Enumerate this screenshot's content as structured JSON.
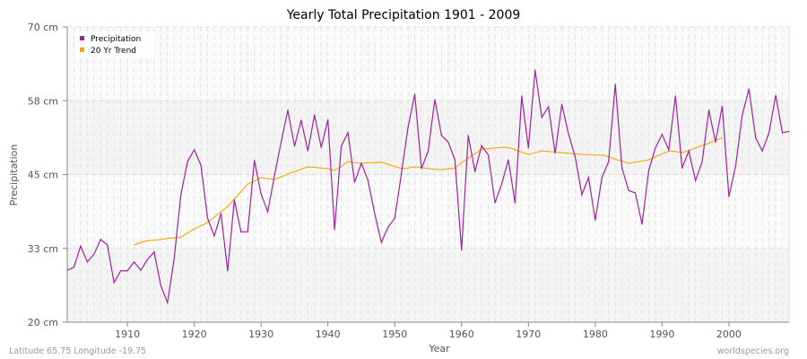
{
  "chart_data": {
    "type": "line",
    "title": "Yearly Total Precipitation 1901 - 2009",
    "xlabel": "Year",
    "ylabel": "Precipitation",
    "xlim": [
      1901,
      2009
    ],
    "ylim": [
      20,
      70
    ],
    "yticks": [
      20,
      32.5,
      45,
      57.5,
      70
    ],
    "ytick_labels": [
      "20 cm",
      "33 cm",
      "45 cm",
      "58 cm",
      "70 cm"
    ],
    "xticks": [
      1910,
      1920,
      1930,
      1940,
      1950,
      1960,
      1970,
      1980,
      1990,
      2000
    ],
    "xtick_labels": [
      "1910",
      "1920",
      "1930",
      "1940",
      "1950",
      "1960",
      "1970",
      "1980",
      "1990",
      "2000"
    ],
    "grid": true,
    "legend_position": "top-left",
    "series": [
      {
        "name": "Precipitation",
        "color": "#a020a0",
        "start_year": 1901,
        "values": [
          28.8,
          29.3,
          32.9,
          30.2,
          31.5,
          34.0,
          33.1,
          26.7,
          28.7,
          28.7,
          30.2,
          28.8,
          30.6,
          31.9,
          26.2,
          23.3,
          30.8,
          41.6,
          47.2,
          49.2,
          46.6,
          37.6,
          34.6,
          38.4,
          28.7,
          40.7,
          35.3,
          35.3,
          47.4,
          41.7,
          38.7,
          44.8,
          50.5,
          55.9,
          49.8,
          54.2,
          49.0,
          55.1,
          49.6,
          54.3,
          35.7,
          49.8,
          52.1,
          43.7,
          46.9,
          44.0,
          38.4,
          33.5,
          36.1,
          37.6,
          45.2,
          53.1,
          58.6,
          46.0,
          49.0,
          57.7,
          51.6,
          50.5,
          47.5,
          32.2,
          51.6,
          45.5,
          49.9,
          48.3,
          40.2,
          43.4,
          47.5,
          40.2,
          58.3,
          49.5,
          62.7,
          54.7,
          56.5,
          48.6,
          56.9,
          51.9,
          48.0,
          41.6,
          44.5,
          37.3,
          44.5,
          47.2,
          60.3,
          46.1,
          42.3,
          41.9,
          36.6,
          45.7,
          49.5,
          51.8,
          49.2,
          58.3,
          46.1,
          49.0,
          44.0,
          47.2,
          55.9,
          50.5,
          56.6,
          41.3,
          46.4,
          55.1,
          59.5,
          51.2,
          49.0,
          52.1,
          58.4,
          52.1,
          52.3
        ]
      },
      {
        "name": "20 Yr Trend",
        "color": "#ffa500",
        "start_year": 1911,
        "values": [
          33.1,
          33.5,
          33.8,
          33.9,
          34.0,
          34.2,
          34.3,
          34.4,
          35.1,
          35.8,
          36.3,
          36.9,
          37.8,
          38.7,
          39.6,
          40.9,
          42.1,
          43.4,
          43.9,
          44.5,
          44.3,
          44.2,
          44.6,
          45.1,
          45.5,
          45.9,
          46.3,
          46.2,
          46.1,
          46.0,
          45.7,
          46.4,
          47.2,
          47.0,
          46.9,
          47.0,
          47.0,
          47.1,
          46.7,
          46.4,
          46.0,
          46.1,
          46.3,
          46.2,
          46.0,
          45.9,
          45.8,
          46.0,
          46.1,
          47.0,
          47.8,
          48.5,
          49.3,
          49.4,
          49.5,
          49.6,
          49.6,
          49.2,
          48.8,
          48.4,
          48.7,
          49.0,
          48.9,
          48.8,
          48.7,
          48.6,
          48.5,
          48.4,
          48.4,
          48.3,
          48.3,
          48.0,
          47.6,
          47.3,
          46.9,
          47.1,
          47.3,
          47.5,
          48.0,
          48.5,
          49.0,
          48.9,
          48.7,
          49.1,
          49.5,
          49.9,
          50.3,
          50.8,
          51.2
        ]
      }
    ]
  },
  "footer": {
    "left": "Latitude 65.75 Longitude -19.75",
    "right": "worldspecies.org"
  }
}
